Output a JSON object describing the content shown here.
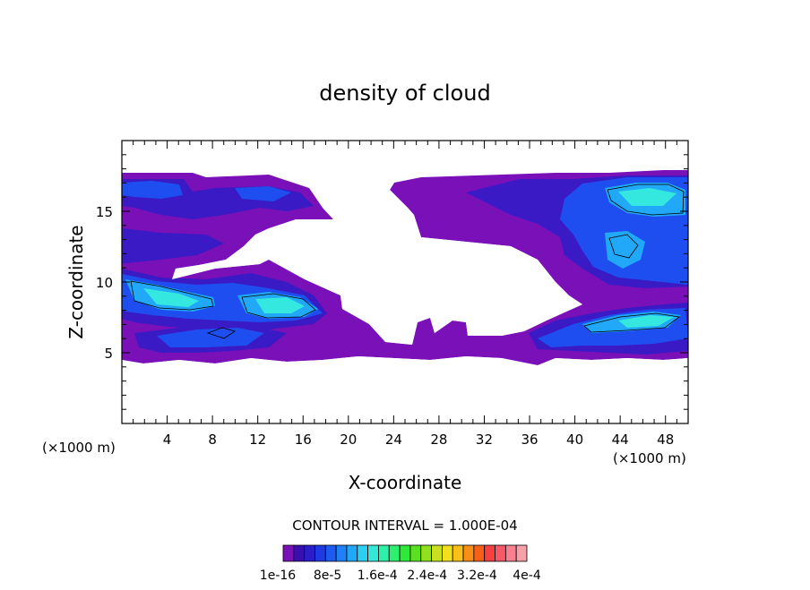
{
  "chart_data": {
    "type": "heatmap",
    "title": "density of cloud",
    "xlabel": "X-coordinate",
    "ylabel": "Z-coordinate",
    "x_unit_label": "(×1000 m)",
    "y_unit_label": "(×1000 m)",
    "xlim": [
      0,
      50
    ],
    "ylim": [
      0,
      20
    ],
    "x_ticks": [
      4,
      8,
      12,
      16,
      20,
      24,
      28,
      32,
      36,
      40,
      44,
      48
    ],
    "y_ticks": [
      5,
      10,
      15
    ],
    "contour_interval_text": "CONTOUR INTERVAL = 1.000E-04",
    "colorbar": {
      "labels": [
        "1e-16",
        "8e-5",
        "1.6e-4",
        "2.4e-4",
        "3.2e-4",
        "4e-4"
      ],
      "colors": [
        "#7a10b8",
        "#3a0fb0",
        "#2a1ec8",
        "#1f3ae0",
        "#1d5cf0",
        "#1f80f8",
        "#21a8f8",
        "#2bd0f0",
        "#34e8d8",
        "#2ef0a8",
        "#2ef070",
        "#30e838",
        "#5ae020",
        "#90e020",
        "#c8e020",
        "#f0e020",
        "#f8c018",
        "#f89018",
        "#f86018",
        "#f84040",
        "#f85868",
        "#f88090",
        "#f8a0a8"
      ]
    }
  }
}
